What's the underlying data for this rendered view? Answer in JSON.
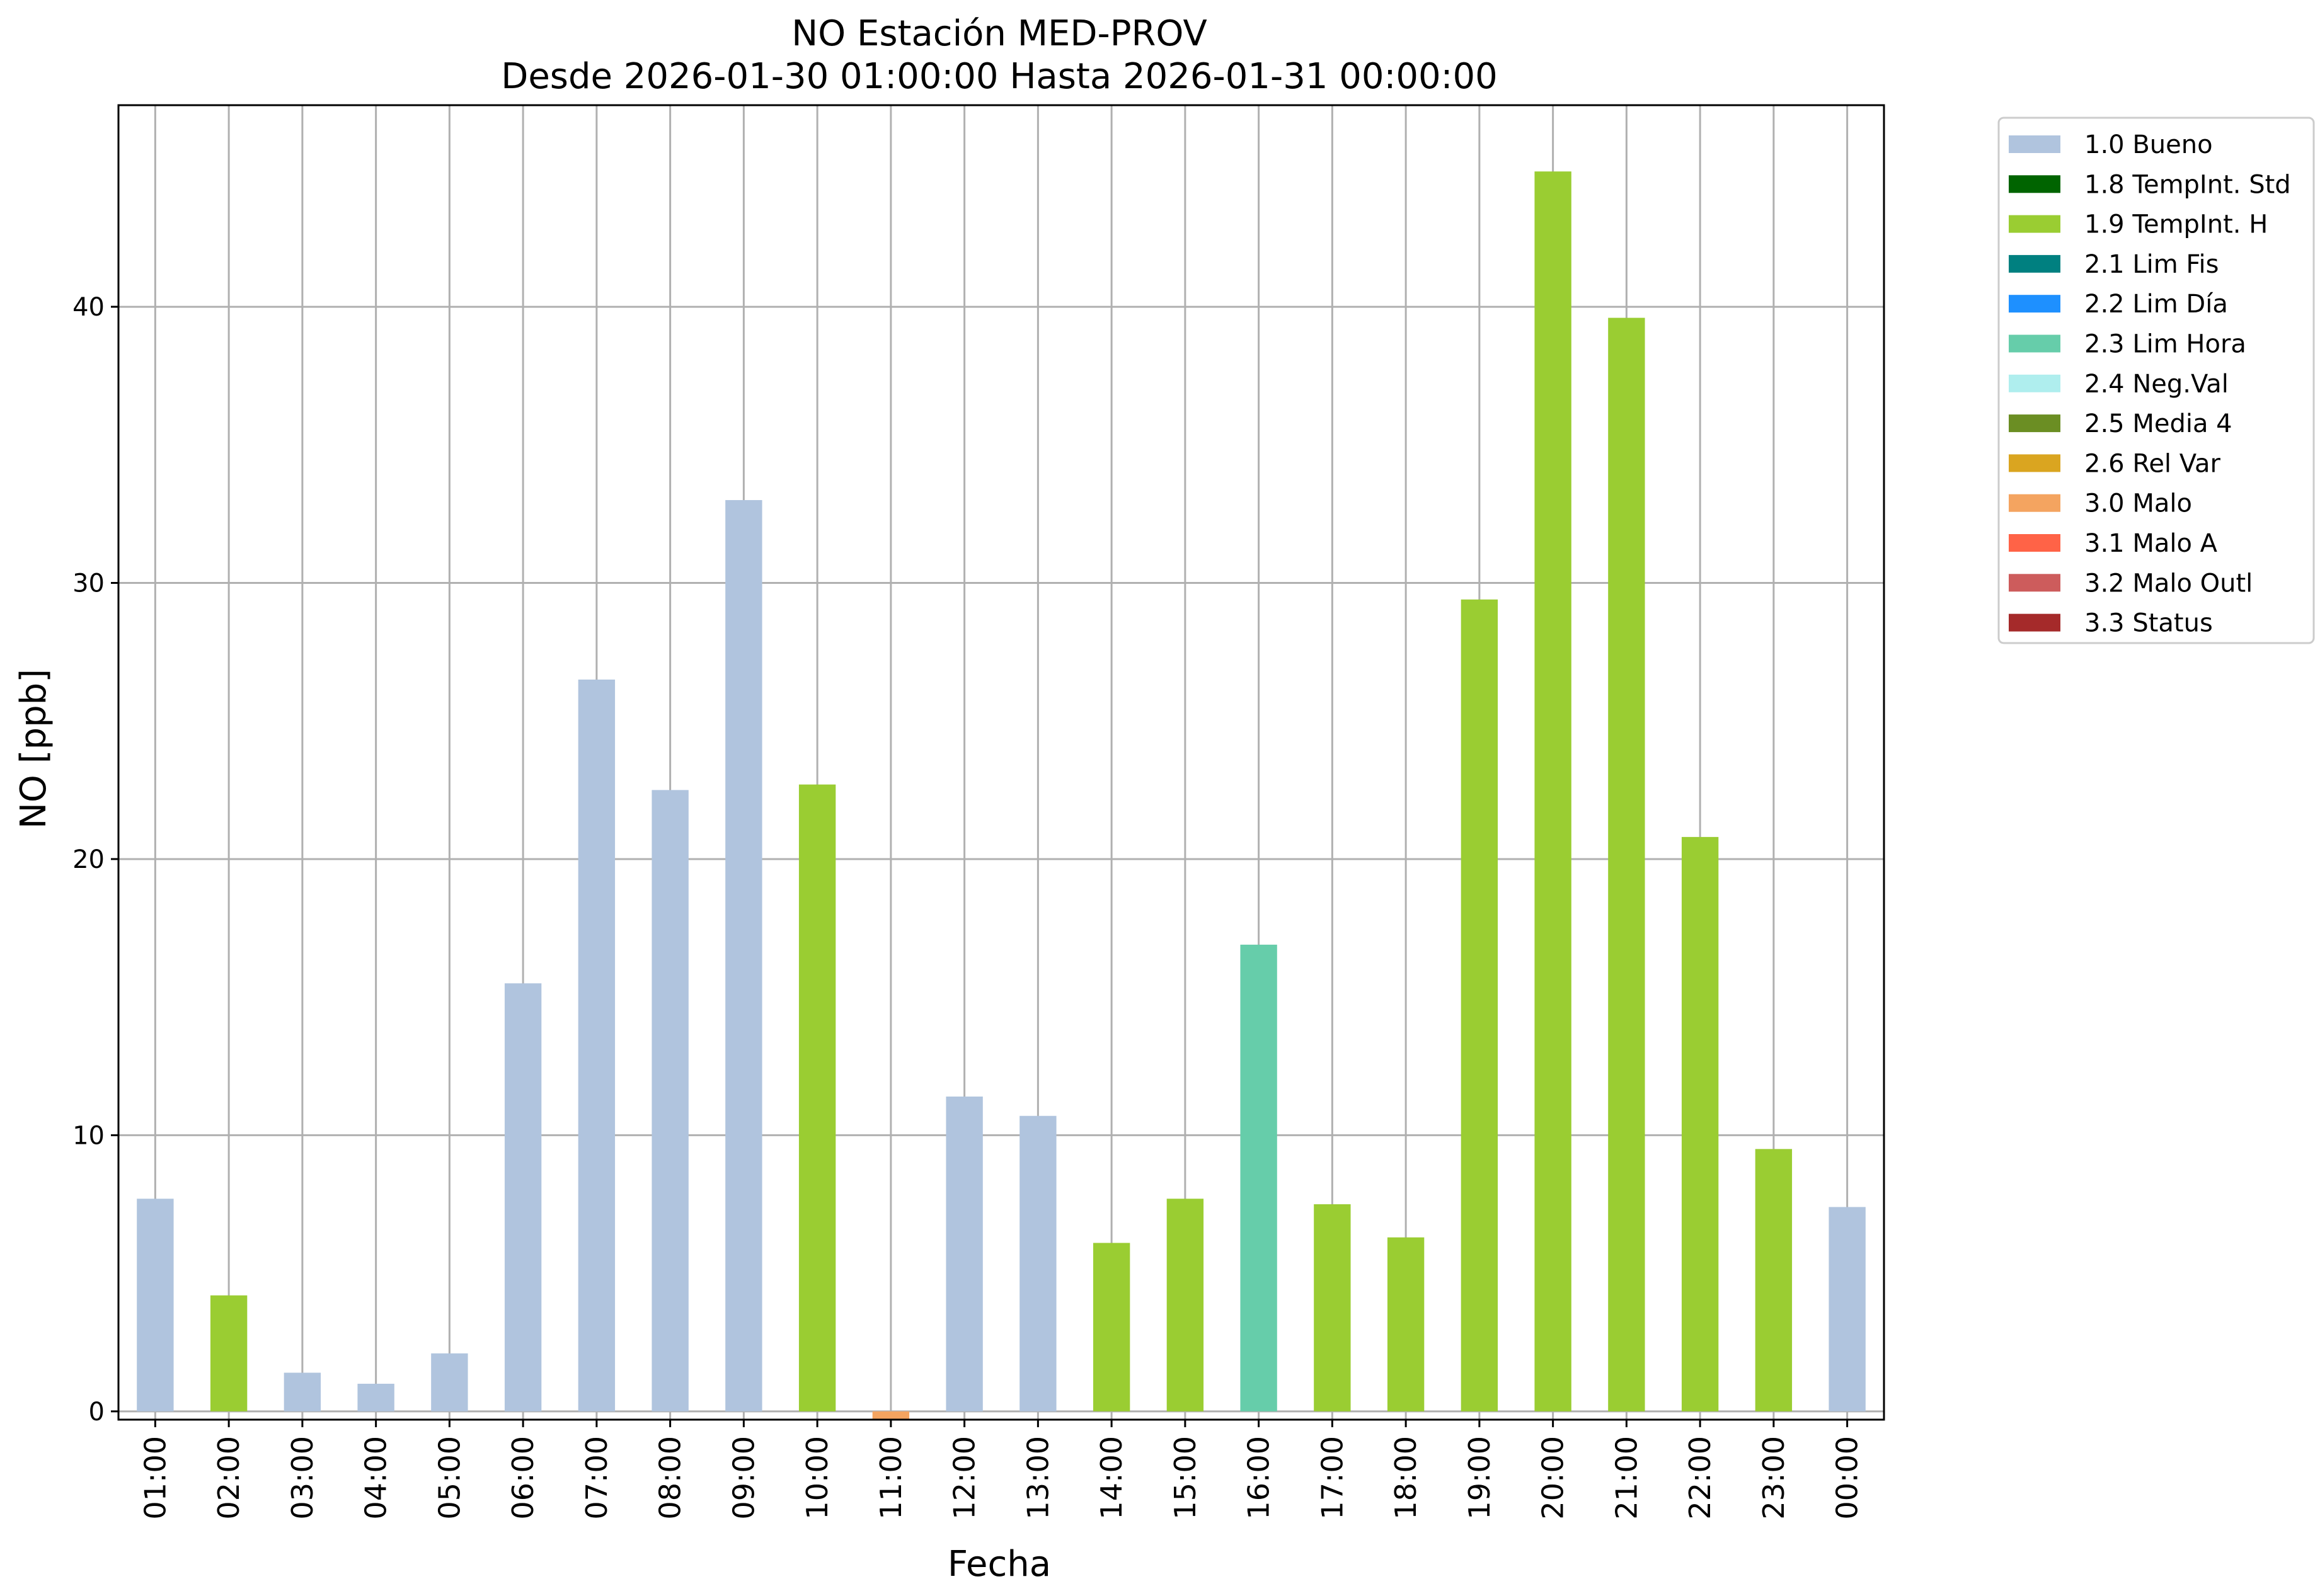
{
  "chart_data": {
    "type": "bar",
    "title": "NO Estación MED-PROV",
    "subtitle": "Desde 2026-01-30 01:00:00 Hasta 2026-01-31 00:00:00",
    "xlabel": "Fecha",
    "ylabel": "NO [ppb]",
    "ylim": [
      -0.3,
      47.3
    ],
    "yticks": [
      0,
      10,
      20,
      30,
      40
    ],
    "grid": true,
    "legend_position": "outside-right",
    "categories": [
      "01:00",
      "02:00",
      "03:00",
      "04:00",
      "05:00",
      "06:00",
      "07:00",
      "08:00",
      "09:00",
      "10:00",
      "11:00",
      "12:00",
      "13:00",
      "14:00",
      "15:00",
      "16:00",
      "17:00",
      "18:00",
      "19:00",
      "20:00",
      "21:00",
      "22:00",
      "23:00",
      "00:00"
    ],
    "values": [
      7.7,
      4.2,
      1.4,
      1.0,
      2.1,
      15.5,
      26.5,
      22.5,
      33.0,
      22.7,
      -0.3,
      11.4,
      10.7,
      6.1,
      7.7,
      16.9,
      7.5,
      6.3,
      29.4,
      44.9,
      39.6,
      20.8,
      9.5,
      7.4
    ],
    "flags": [
      "1.0 Bueno",
      "1.9 TempInt. H",
      "1.0 Bueno",
      "1.0 Bueno",
      "1.0 Bueno",
      "1.0 Bueno",
      "1.0 Bueno",
      "1.0 Bueno",
      "1.0 Bueno",
      "1.9 TempInt. H",
      "3.0 Malo",
      "1.0 Bueno",
      "1.0 Bueno",
      "1.9 TempInt. H",
      "1.9 TempInt. H",
      "2.3 Lim Hora",
      "1.9 TempInt. H",
      "1.9 TempInt. H",
      "1.9 TempInt. H",
      "1.9 TempInt. H",
      "1.9 TempInt. H",
      "1.9 TempInt. H",
      "1.9 TempInt. H",
      "1.0 Bueno"
    ],
    "legend": [
      {
        "label": "1.0 Bueno",
        "color": "#b0c4de"
      },
      {
        "label": "1.8 TempInt. Std",
        "color": "#006400"
      },
      {
        "label": "1.9 TempInt. H",
        "color": "#9acd32"
      },
      {
        "label": "2.1 Lim Fis",
        "color": "#008080"
      },
      {
        "label": "2.2 Lim Día",
        "color": "#1e90ff"
      },
      {
        "label": "2.3 Lim Hora",
        "color": "#66cdaa"
      },
      {
        "label": "2.4 Neg.Val",
        "color": "#afeeee"
      },
      {
        "label": "2.5 Media 4",
        "color": "#6b8e23"
      },
      {
        "label": "2.6 Rel Var",
        "color": "#daa520"
      },
      {
        "label": "3.0 Malo",
        "color": "#f4a460"
      },
      {
        "label": "3.1 Malo A",
        "color": "#ff6347"
      },
      {
        "label": "3.2 Malo Outl",
        "color": "#cd5c5c"
      },
      {
        "label": "3.3 Status",
        "color": "#a52a2a"
      }
    ]
  }
}
